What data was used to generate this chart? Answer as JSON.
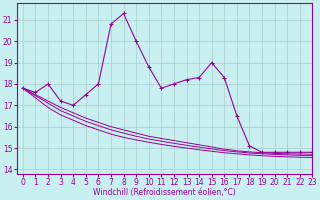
{
  "xlabel": "Windchill (Refroidissement éolien,°C)",
  "background_color": "#c8f0f0",
  "line_color": "#990099",
  "grid_color": "#aacccc",
  "x_data": [
    0,
    1,
    2,
    3,
    4,
    5,
    6,
    7,
    8,
    9,
    10,
    11,
    12,
    13,
    14,
    15,
    16,
    17,
    18,
    19,
    20,
    21,
    22,
    23
  ],
  "series_main": [
    17.8,
    17.6,
    18.0,
    17.2,
    17.0,
    17.5,
    18.0,
    20.8,
    21.3,
    20.0,
    18.8,
    17.8,
    18.0,
    18.2,
    18.3,
    19.0,
    18.3,
    16.5,
    15.1,
    14.8,
    14.8,
    14.8,
    14.8,
    14.8
  ],
  "series_line1": [
    17.8,
    17.5,
    17.2,
    16.9,
    16.65,
    16.4,
    16.2,
    16.0,
    15.85,
    15.7,
    15.55,
    15.45,
    15.35,
    15.25,
    15.15,
    15.05,
    14.95,
    14.87,
    14.82,
    14.78,
    14.75,
    14.73,
    14.72,
    14.71
  ],
  "series_line2": [
    17.8,
    17.45,
    17.1,
    16.75,
    16.5,
    16.25,
    16.05,
    15.85,
    15.7,
    15.55,
    15.42,
    15.32,
    15.22,
    15.13,
    15.04,
    14.96,
    14.88,
    14.82,
    14.77,
    14.73,
    14.7,
    14.68,
    14.66,
    14.65
  ],
  "series_line3": [
    17.8,
    17.35,
    16.9,
    16.55,
    16.3,
    16.05,
    15.85,
    15.65,
    15.5,
    15.38,
    15.27,
    15.17,
    15.08,
    15.0,
    14.92,
    14.85,
    14.78,
    14.73,
    14.68,
    14.64,
    14.61,
    14.59,
    14.57,
    14.56
  ],
  "ylim": [
    13.8,
    21.8
  ],
  "xlim": [
    -0.5,
    23
  ],
  "yticks": [
    14,
    15,
    16,
    17,
    18,
    19,
    20,
    21
  ],
  "xticks": [
    0,
    1,
    2,
    3,
    4,
    5,
    6,
    7,
    8,
    9,
    10,
    11,
    12,
    13,
    14,
    15,
    16,
    17,
    18,
    19,
    20,
    21,
    22,
    23
  ],
  "tick_fontsize": 5.5,
  "xlabel_fontsize": 5.5
}
